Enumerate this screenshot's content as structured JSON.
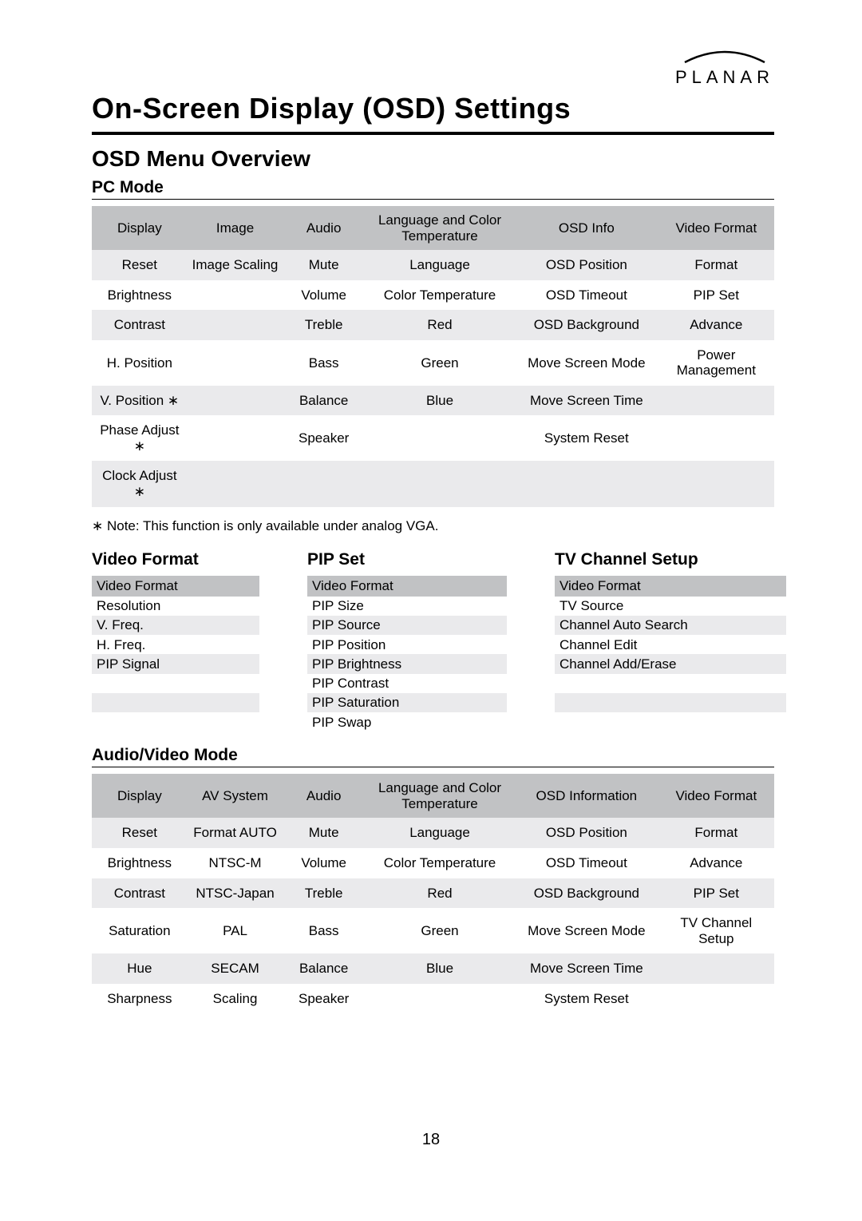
{
  "logo": {
    "text": "PLANAR"
  },
  "title": "On-Screen Display (OSD) Settings",
  "subtitle": "OSD Menu Overview",
  "pc_mode": {
    "heading": "PC Mode",
    "headers": [
      "Display",
      "Image",
      "Audio",
      "Language  and Color Temperature",
      "OSD Info",
      "Video Format"
    ],
    "rows": [
      [
        "Reset",
        "Image Scaling",
        "Mute",
        "Language",
        "OSD Position",
        "Format"
      ],
      [
        "Brightness",
        "",
        "Volume",
        "Color Temperature",
        "OSD Timeout",
        "PIP Set"
      ],
      [
        "Contrast",
        "",
        "Treble",
        "Red",
        "OSD Background",
        "Advance"
      ],
      [
        "H. Position",
        "",
        "Bass",
        "Green",
        "Move Screen Mode",
        "Power Management"
      ],
      [
        "V. Position ∗",
        "",
        "Balance",
        "Blue",
        "Move Screen Time",
        ""
      ],
      [
        "Phase Adjust ∗",
        "",
        "Speaker",
        "",
        "System Reset",
        ""
      ],
      [
        "Clock Adjust ∗",
        "",
        "",
        "",
        "",
        ""
      ]
    ]
  },
  "note": "∗ Note: This function is only available under analog VGA.",
  "video_format": {
    "heading": "Video Format",
    "header": "Video Format",
    "rows": [
      "Resolution",
      "V. Freq.",
      "H. Freq.",
      "PIP Signal",
      "",
      ""
    ]
  },
  "pip_set": {
    "heading": "PIP Set",
    "header": "Video Format",
    "rows": [
      "PIP Size",
      "PIP Source",
      "PIP Position",
      "PIP Brightness",
      "PIP Contrast",
      "PIP Saturation",
      "PIP Swap"
    ]
  },
  "tv_channel": {
    "heading": "TV Channel Setup",
    "header": "Video Format",
    "rows": [
      "TV Source",
      "Channel Auto Search",
      "Channel Edit",
      "Channel Add/Erase",
      "",
      ""
    ]
  },
  "av_mode": {
    "heading": "Audio/Video Mode",
    "headers": [
      "Display",
      "AV System",
      "Audio",
      "Language and Color Temperature",
      "OSD Information",
      "Video Format"
    ],
    "rows": [
      [
        "Reset",
        "Format AUTO",
        "Mute",
        "Language",
        "OSD Position",
        "Format"
      ],
      [
        "Brightness",
        "NTSC-M",
        "Volume",
        "Color Temperature",
        "OSD Timeout",
        "Advance"
      ],
      [
        "Contrast",
        "NTSC-Japan",
        "Treble",
        "Red",
        "OSD Background",
        "PIP Set"
      ],
      [
        "Saturation",
        "PAL",
        "Bass",
        "Green",
        "Move Screen Mode",
        "TV Channel Setup"
      ],
      [
        "Hue",
        "SECAM",
        "Balance",
        "Blue",
        "Move Screen Time",
        ""
      ],
      [
        "Sharpness",
        "Scaling",
        "Speaker",
        "",
        "System Reset",
        ""
      ]
    ]
  },
  "page_number": "18",
  "colors": {
    "header_bg": "#c1c2c4",
    "row_alt_bg": "#eaeaec",
    "text": "#000000",
    "background": "#ffffff"
  }
}
